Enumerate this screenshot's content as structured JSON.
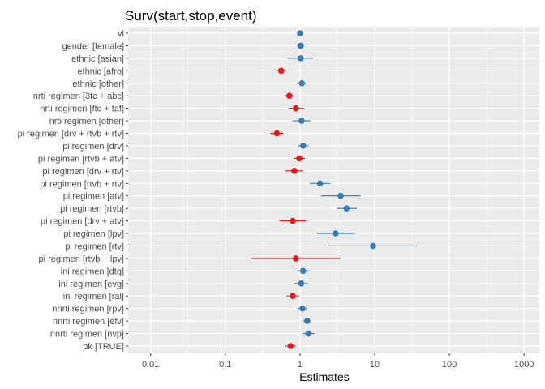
{
  "chart_data": {
    "type": "scatter",
    "title": "Surv(start,stop,event)",
    "xlabel": "Estimates",
    "ylabel": "",
    "x_scale": "log10",
    "xlim": [
      0.005,
      1600
    ],
    "x_ticks": [
      0.01,
      0.1,
      1,
      10,
      100,
      1000
    ],
    "x_tick_labels": [
      "0.01",
      "0.1",
      "1",
      "10",
      "100",
      "1000"
    ],
    "grid": true,
    "legend": "none",
    "colors": {
      "positive": "#377EB8",
      "negative": "#E41A1C",
      "panel": "#EBEBEB",
      "grid": "#FFFFFF"
    },
    "terms": [
      {
        "label": "vl",
        "estimate": 1.0,
        "ci_low": 0.96,
        "ci_high": 1.04
      },
      {
        "label": "gender [female]",
        "estimate": 1.02,
        "ci_low": 0.91,
        "ci_high": 1.14
      },
      {
        "label": "ethnic [asian]",
        "estimate": 1.02,
        "ci_low": 0.69,
        "ci_high": 1.48
      },
      {
        "label": "ethnic [afro]",
        "estimate": 0.56,
        "ci_low": 0.47,
        "ci_high": 0.66
      },
      {
        "label": "ethnic [other]",
        "estimate": 1.06,
        "ci_low": 0.94,
        "ci_high": 1.2
      },
      {
        "label": "nrti regimen [3tc + abc]",
        "estimate": 0.72,
        "ci_low": 0.63,
        "ci_high": 0.82
      },
      {
        "label": "nrti regimen [ftc + taf]",
        "estimate": 0.88,
        "ci_low": 0.7,
        "ci_high": 1.12
      },
      {
        "label": "nrti regimen [other]",
        "estimate": 1.05,
        "ci_low": 0.8,
        "ci_high": 1.38
      },
      {
        "label": "pi regimen [drv + rtvb + rtv]",
        "estimate": 0.49,
        "ci_low": 0.4,
        "ci_high": 0.6
      },
      {
        "label": "pi regimen [drv]",
        "estimate": 1.1,
        "ci_low": 0.93,
        "ci_high": 1.3
      },
      {
        "label": "pi regimen [rtvb + atv]",
        "estimate": 0.98,
        "ci_low": 0.82,
        "ci_high": 1.17
      },
      {
        "label": "pi regimen [drv + rtv]",
        "estimate": 0.84,
        "ci_low": 0.64,
        "ci_high": 1.1
      },
      {
        "label": "pi regimen [rtvb + rtv]",
        "estimate": 1.85,
        "ci_low": 1.35,
        "ci_high": 2.55
      },
      {
        "label": "pi regimen [atv]",
        "estimate": 3.5,
        "ci_low": 1.9,
        "ci_high": 6.5
      },
      {
        "label": "pi regimen [rtvb]",
        "estimate": 4.2,
        "ci_low": 3.1,
        "ci_high": 5.8
      },
      {
        "label": "pi regimen [drv + atv]",
        "estimate": 0.8,
        "ci_low": 0.53,
        "ci_high": 1.2
      },
      {
        "label": "pi regimen [lpv]",
        "estimate": 3.0,
        "ci_low": 1.7,
        "ci_high": 5.4
      },
      {
        "label": "pi regimen [rtv]",
        "estimate": 9.5,
        "ci_low": 2.4,
        "ci_high": 38
      },
      {
        "label": "pi regimen [rtvb + lpv]",
        "estimate": 0.88,
        "ci_low": 0.22,
        "ci_high": 3.5
      },
      {
        "label": "ini regimen [dtg]",
        "estimate": 1.1,
        "ci_low": 0.91,
        "ci_high": 1.34
      },
      {
        "label": "ini regimen [evg]",
        "estimate": 1.04,
        "ci_low": 0.84,
        "ci_high": 1.3
      },
      {
        "label": "ini regimen [ral]",
        "estimate": 0.8,
        "ci_low": 0.66,
        "ci_high": 0.98
      },
      {
        "label": "nnrti regimen [rpv]",
        "estimate": 1.08,
        "ci_low": 0.94,
        "ci_high": 1.24
      },
      {
        "label": "nnrti regimen [efv]",
        "estimate": 1.25,
        "ci_low": 1.1,
        "ci_high": 1.42
      },
      {
        "label": "nnrti regimen [nvp]",
        "estimate": 1.3,
        "ci_low": 1.08,
        "ci_high": 1.57
      },
      {
        "label": "pk [TRUE]",
        "estimate": 0.75,
        "ci_low": 0.64,
        "ci_high": 0.88
      }
    ]
  }
}
